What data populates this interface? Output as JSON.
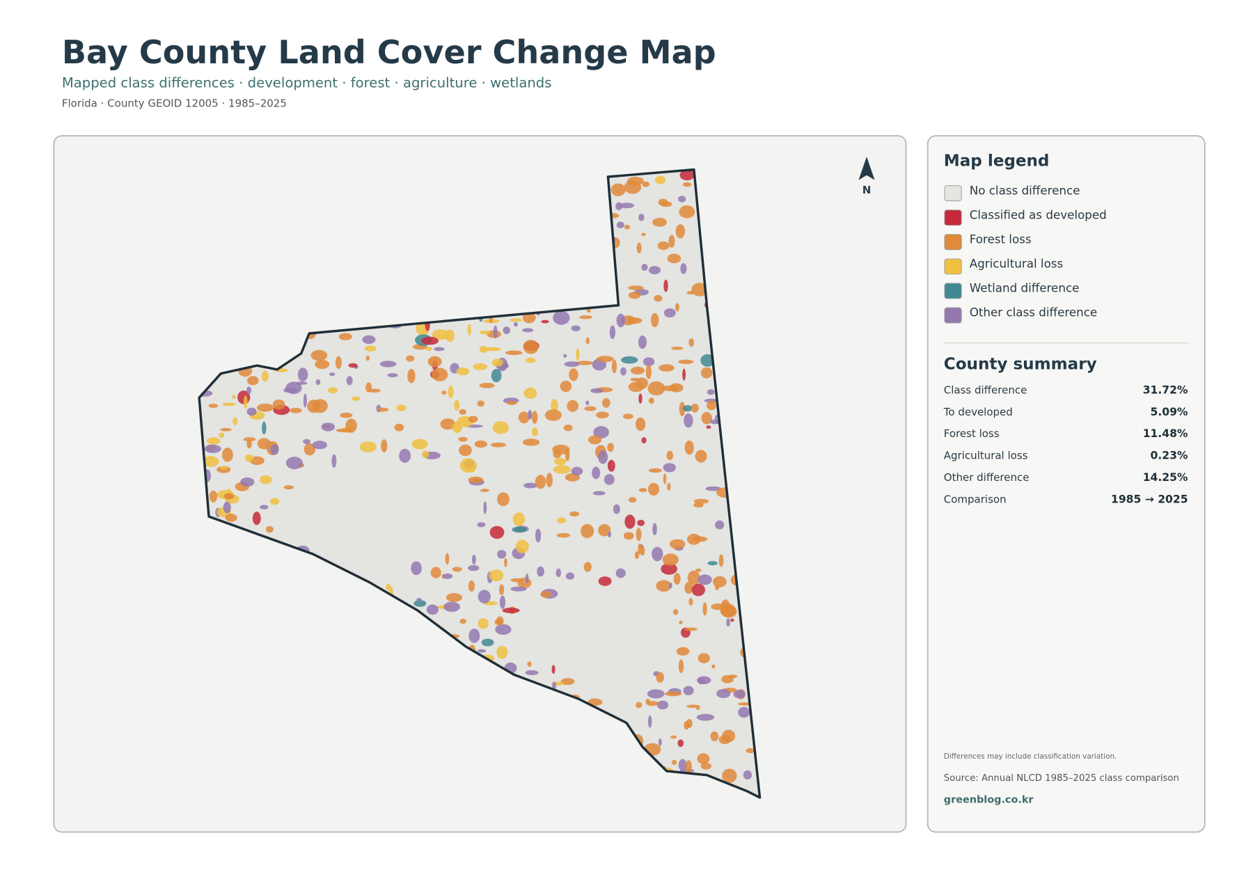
{
  "header": {
    "title": "Bay County Land Cover Change Map",
    "subtitle": "Mapped class differences · development · forest · agriculture · wetlands",
    "meta": "Florida · County GEOID 12005 · 1985–2025"
  },
  "map": {
    "north_label": "N"
  },
  "legend": {
    "title": "Map legend",
    "items": [
      {
        "label": "No class difference",
        "color": "#e4e4e1"
      },
      {
        "label": "Classified as developed",
        "color": "#c62a3a"
      },
      {
        "label": "Forest loss",
        "color": "#e08a3a"
      },
      {
        "label": "Agricultural loss",
        "color": "#f0c040"
      },
      {
        "label": "Wetland difference",
        "color": "#3f8a92"
      },
      {
        "label": "Other class difference",
        "color": "#9479b0"
      }
    ]
  },
  "summary": {
    "title": "County summary",
    "rows": [
      {
        "label": "Class difference",
        "value": "31.72%"
      },
      {
        "label": "To developed",
        "value": "5.09%"
      },
      {
        "label": "Forest loss",
        "value": "11.48%"
      },
      {
        "label": "Agricultural loss",
        "value": "0.23%"
      },
      {
        "label": "Other difference",
        "value": "14.25%"
      },
      {
        "label": "Comparison",
        "value": "1985 → 2025"
      }
    ]
  },
  "footer": {
    "note": "Differences may include classification variation.",
    "source": "Source: Annual NLCD 1985–2025 class comparison",
    "brand": "greenblog.co.kr"
  }
}
